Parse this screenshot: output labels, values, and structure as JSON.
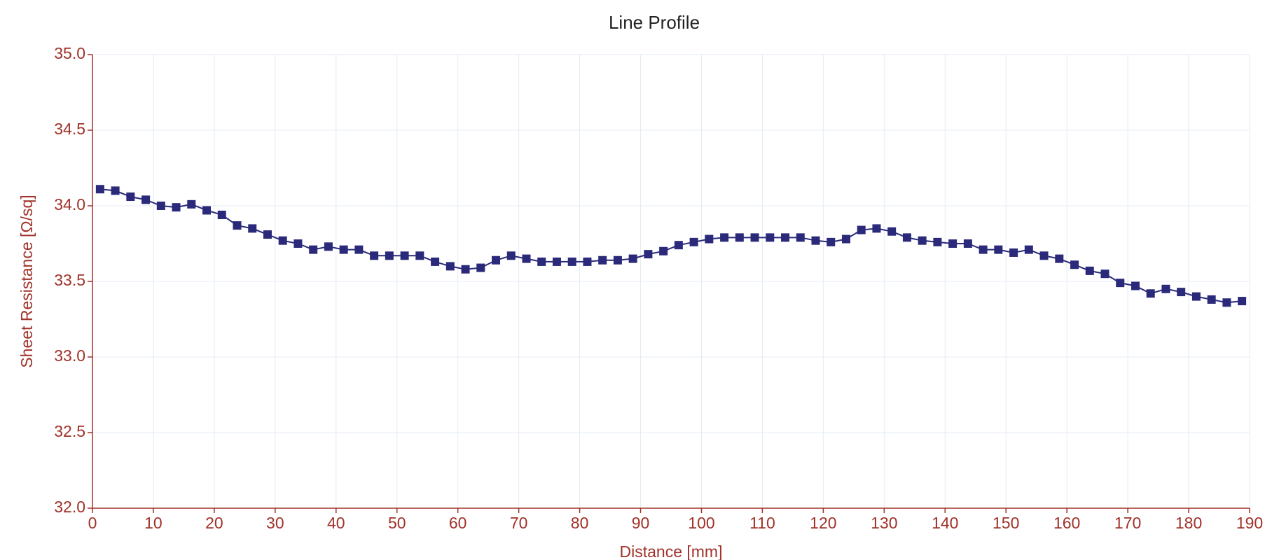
{
  "chart_data": {
    "type": "line",
    "title": "Line Profile",
    "x_label": "Distance [mm]",
    "y_label": "Sheet Resistance [Ω/sq]",
    "x": [
      1.25,
      3.75,
      6.25,
      8.75,
      11.25,
      13.75,
      16.25,
      18.75,
      21.25,
      23.75,
      26.25,
      28.75,
      31.25,
      33.75,
      36.25,
      38.75,
      41.25,
      43.75,
      46.25,
      48.75,
      51.25,
      53.75,
      56.25,
      58.75,
      61.25,
      63.75,
      66.25,
      68.75,
      71.25,
      73.75,
      76.25,
      78.75,
      81.25,
      83.75,
      86.25,
      88.75,
      91.25,
      93.75,
      96.25,
      98.75,
      101.25,
      103.75,
      106.25,
      108.75,
      111.25,
      113.75,
      116.25,
      118.75,
      121.25,
      123.75,
      126.25,
      128.75,
      131.25,
      133.75,
      136.25,
      138.75,
      141.25,
      143.75,
      146.25,
      148.75,
      151.25,
      153.75,
      156.25,
      158.75,
      161.25,
      163.75,
      166.25,
      168.75,
      171.25,
      173.75,
      176.25,
      178.75,
      181.25,
      183.75,
      186.25,
      188.75
    ],
    "series": [
      {
        "name": "Sheet Resistance",
        "color": "#2b2a7a",
        "values": [
          34.11,
          34.1,
          34.06,
          34.04,
          34.0,
          33.99,
          34.01,
          33.97,
          33.94,
          33.87,
          33.85,
          33.81,
          33.77,
          33.75,
          33.71,
          33.73,
          33.71,
          33.71,
          33.67,
          33.67,
          33.67,
          33.67,
          33.63,
          33.6,
          33.58,
          33.59,
          33.64,
          33.67,
          33.65,
          33.63,
          33.63,
          33.63,
          33.63,
          33.64,
          33.64,
          33.65,
          33.68,
          33.7,
          33.74,
          33.76,
          33.78,
          33.79,
          33.79,
          33.79,
          33.79,
          33.79,
          33.79,
          33.77,
          33.76,
          33.78,
          33.84,
          33.85,
          33.83,
          33.79,
          33.77,
          33.76,
          33.75,
          33.75,
          33.71,
          33.71,
          33.69,
          33.71,
          33.67,
          33.65,
          33.61,
          33.57,
          33.55,
          33.49,
          33.47,
          33.42,
          33.45,
          33.43,
          33.4,
          33.38,
          33.36,
          33.37
        ]
      }
    ],
    "xlim": [
      0,
      190
    ],
    "xticks": [
      0,
      10,
      20,
      30,
      40,
      50,
      60,
      70,
      80,
      90,
      100,
      110,
      120,
      130,
      140,
      150,
      160,
      170,
      180,
      190
    ],
    "ylim": [
      32,
      35
    ],
    "yticks": [
      {
        "value": 32,
        "label": "32.0"
      },
      {
        "value": 32.5,
        "label": "32.5"
      },
      {
        "value": 33,
        "label": "33.0"
      },
      {
        "value": 33.5,
        "label": "33.5"
      },
      {
        "value": 34,
        "label": "34.0"
      },
      {
        "value": 34.5,
        "label": "34.5"
      },
      {
        "value": 35,
        "label": "35.0"
      }
    ],
    "grid": true,
    "axis_color": "#a0322a"
  }
}
